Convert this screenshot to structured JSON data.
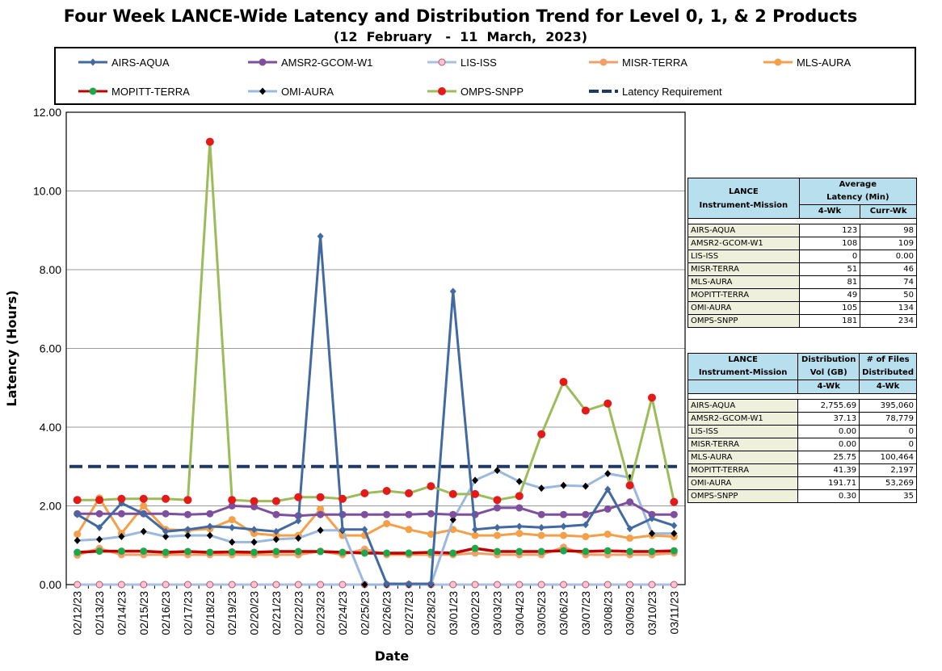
{
  "chart_data": {
    "type": "line",
    "title": "Four Week LANCE-Wide Latency and Distribution Trend for Level 0, 1, & 2 Products",
    "subtitle": "(12  February   -  11  March,  2023)",
    "xlabel": "Date",
    "ylabel": "Latency (Hours)",
    "ylim": [
      0,
      12
    ],
    "yticks": [
      "0.00",
      "2.00",
      "4.00",
      "6.00",
      "8.00",
      "10.00",
      "12.00"
    ],
    "grid": true,
    "legend_position": "top",
    "categories": [
      "02/12/23",
      "02/13/23",
      "02/14/23",
      "02/15/23",
      "02/16/23",
      "02/17/23",
      "02/18/23",
      "02/19/23",
      "02/20/23",
      "02/21/23",
      "02/22/23",
      "02/23/23",
      "02/24/23",
      "02/25/23",
      "02/26/23",
      "02/27/23",
      "02/28/23",
      "03/01/23",
      "03/02/23",
      "03/03/23",
      "03/04/23",
      "03/05/23",
      "03/06/23",
      "03/07/23",
      "03/08/23",
      "03/09/23",
      "03/10/23",
      "03/11/23"
    ],
    "series": [
      {
        "name": "AIRS-AQUA",
        "color": "#426aa0",
        "marker": "diamond",
        "values": [
          1.78,
          1.45,
          2.07,
          1.8,
          1.35,
          1.4,
          1.48,
          1.45,
          1.4,
          1.35,
          1.62,
          8.85,
          1.4,
          1.4,
          0.02,
          0.02,
          0.02,
          7.45,
          1.4,
          1.45,
          1.48,
          1.45,
          1.48,
          1.52,
          2.42,
          1.42,
          1.68,
          1.5
        ]
      },
      {
        "name": "AMSR2-GCOM-W1",
        "color": "#7e4f9c",
        "marker": "circle",
        "values": [
          1.8,
          1.8,
          1.8,
          1.8,
          1.8,
          1.78,
          1.8,
          2.0,
          1.98,
          1.78,
          1.75,
          1.78,
          1.78,
          1.78,
          1.78,
          1.78,
          1.8,
          1.78,
          1.78,
          1.95,
          1.95,
          1.78,
          1.78,
          1.78,
          1.92,
          2.1,
          1.78,
          1.78
        ]
      },
      {
        "name": "LIS-ISS",
        "color": "#a9c0e0",
        "marker": "open-circle",
        "values": [
          0,
          0,
          0,
          0,
          0,
          0,
          0,
          0,
          0,
          0,
          0,
          0,
          0,
          0,
          0,
          0,
          0,
          0,
          0,
          0,
          0,
          0,
          0,
          0,
          0,
          0,
          0,
          0
        ]
      },
      {
        "name": "MISR-TERRA",
        "color": "#f0a068",
        "marker": "circle",
        "values": [
          0.75,
          0.92,
          0.76,
          0.76,
          0.76,
          0.76,
          0.76,
          0.76,
          0.76,
          0.76,
          0.76,
          0.85,
          0.76,
          0.9,
          0.76,
          0.76,
          0.76,
          0.76,
          0.8,
          0.76,
          0.76,
          0.76,
          0.95,
          0.76,
          0.76,
          0.76,
          0.76,
          0.8
        ]
      },
      {
        "name": "MLS-AURA",
        "color": "#f4a04a",
        "marker": "circle",
        "values": [
          1.28,
          2.2,
          1.3,
          2.0,
          1.4,
          1.38,
          1.42,
          1.65,
          1.3,
          1.25,
          1.25,
          1.92,
          1.25,
          1.25,
          1.55,
          1.4,
          1.28,
          1.4,
          1.25,
          1.25,
          1.3,
          1.25,
          1.25,
          1.22,
          1.28,
          1.18,
          1.25,
          1.22
        ]
      },
      {
        "name": "MOPITT-TERRA",
        "color": "#c00000",
        "marker": "circle",
        "values": [
          0.82,
          0.85,
          0.85,
          0.85,
          0.82,
          0.84,
          0.82,
          0.83,
          0.82,
          0.84,
          0.84,
          0.84,
          0.82,
          0.8,
          0.8,
          0.8,
          0.82,
          0.8,
          0.92,
          0.84,
          0.84,
          0.84,
          0.86,
          0.84,
          0.86,
          0.84,
          0.84,
          0.86
        ]
      },
      {
        "name": "OMI-AURA",
        "color": "#9bb8df",
        "marker": "diamond-black",
        "values": [
          1.12,
          1.15,
          1.22,
          1.35,
          1.22,
          1.25,
          1.25,
          1.08,
          1.08,
          1.15,
          1.18,
          1.38,
          1.38,
          0.0,
          0.0,
          0.0,
          0.0,
          1.65,
          2.65,
          2.9,
          2.62,
          2.45,
          2.52,
          2.5,
          2.82,
          2.72,
          1.3,
          1.3
        ]
      },
      {
        "name": "OMPS-SNPP",
        "color": "#9cbb59",
        "marker": "red-dot",
        "values": [
          2.15,
          2.15,
          2.18,
          2.18,
          2.18,
          2.15,
          11.25,
          2.15,
          2.12,
          2.12,
          2.22,
          2.22,
          2.18,
          2.32,
          2.38,
          2.32,
          2.5,
          2.3,
          2.3,
          2.15,
          2.25,
          3.82,
          5.15,
          4.42,
          4.6,
          2.52,
          4.75,
          2.1
        ]
      },
      {
        "name": "Latency Requirement",
        "color": "#1f3864",
        "marker": "dash",
        "values": [
          3,
          3,
          3,
          3,
          3,
          3,
          3,
          3,
          3,
          3,
          3,
          3,
          3,
          3,
          3,
          3,
          3,
          3,
          3,
          3,
          3,
          3,
          3,
          3,
          3,
          3,
          3,
          3
        ]
      }
    ]
  },
  "latency_table": {
    "col1_header": "LANCE\nInstrument-Mission",
    "col23_header": "Average\nLatency (Min)",
    "sub1": "4-Wk",
    "sub2": "Curr-Wk",
    "rows": [
      {
        "name": "AIRS-AQUA",
        "a": "123",
        "b": "98"
      },
      {
        "name": "AMSR2-GCOM-W1",
        "a": "108",
        "b": "109"
      },
      {
        "name": "LIS-ISS",
        "a": "0",
        "b": "0.00"
      },
      {
        "name": "MISR-TERRA",
        "a": "51",
        "b": "46"
      },
      {
        "name": "MLS-AURA",
        "a": "81",
        "b": "74"
      },
      {
        "name": "MOPITT-TERRA",
        "a": "49",
        "b": "50"
      },
      {
        "name": "OMI-AURA",
        "a": "105",
        "b": "134"
      },
      {
        "name": "OMPS-SNPP",
        "a": "181",
        "b": "234"
      }
    ]
  },
  "distribution_table": {
    "col1_header": "LANCE\nInstrument-Mission",
    "col2_header": "Distribution\nVol (GB)",
    "col3_header": "# of Files\nDistributed",
    "sub1": "4-Wk",
    "sub2": "4-Wk",
    "rows": [
      {
        "name": "AIRS-AQUA",
        "a": "2,755.69",
        "b": "395,060"
      },
      {
        "name": "AMSR2-GCOM-W1",
        "a": "37.13",
        "b": "78,779"
      },
      {
        "name": "LIS-ISS",
        "a": "0.00",
        "b": "0"
      },
      {
        "name": "MISR-TERRA",
        "a": "0.00",
        "b": "0"
      },
      {
        "name": "MLS-AURA",
        "a": "25.75",
        "b": "100,464"
      },
      {
        "name": "MOPITT-TERRA",
        "a": "41.39",
        "b": "2,197"
      },
      {
        "name": "OMI-AURA",
        "a": "191.71",
        "b": "53,269"
      },
      {
        "name": "OMPS-SNPP",
        "a": "0.30",
        "b": "35"
      }
    ]
  }
}
